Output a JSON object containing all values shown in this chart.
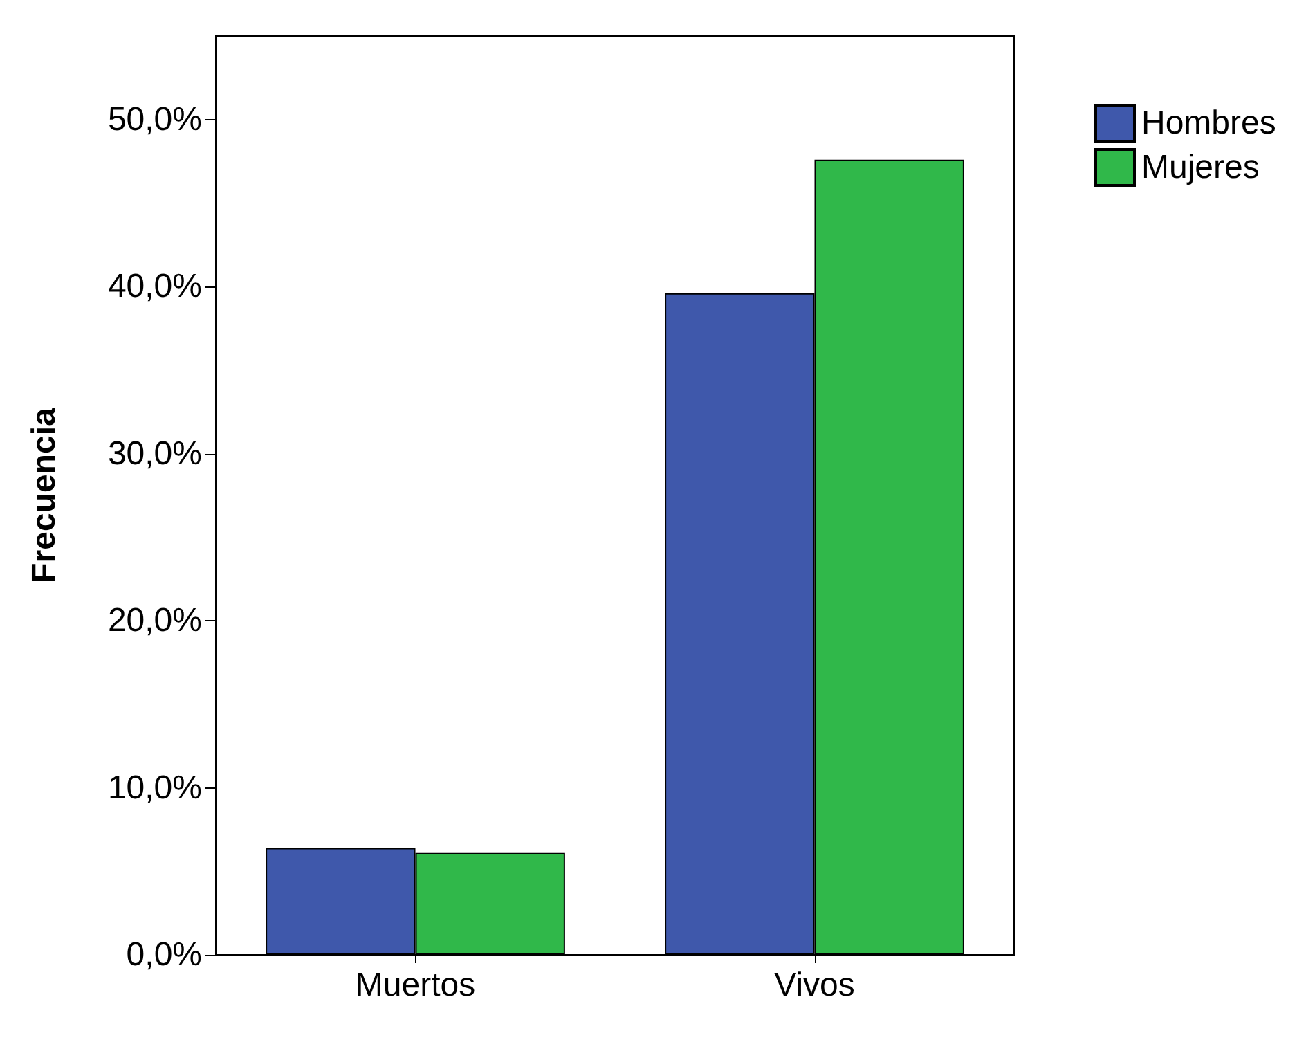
{
  "chart_data": {
    "type": "bar",
    "ylabel": "Frecuencia",
    "categories": [
      "Muertos",
      "Vivos"
    ],
    "series": [
      {
        "name": "Hombres",
        "color": "#3f58ab",
        "values": [
          6.4,
          39.6
        ]
      },
      {
        "name": "Mujeres",
        "color": "#30b84a",
        "values": [
          6.1,
          47.6
        ]
      }
    ],
    "ylim": [
      0,
      55
    ],
    "yticks": [
      {
        "value": 0,
        "label": "0,0%"
      },
      {
        "value": 10,
        "label": "10,0%"
      },
      {
        "value": 20,
        "label": "20,0%"
      },
      {
        "value": 30,
        "label": "30,0%"
      },
      {
        "value": 40,
        "label": "40,0%"
      },
      {
        "value": 50,
        "label": "50,0%"
      }
    ],
    "grid": false,
    "legend": "top right"
  }
}
